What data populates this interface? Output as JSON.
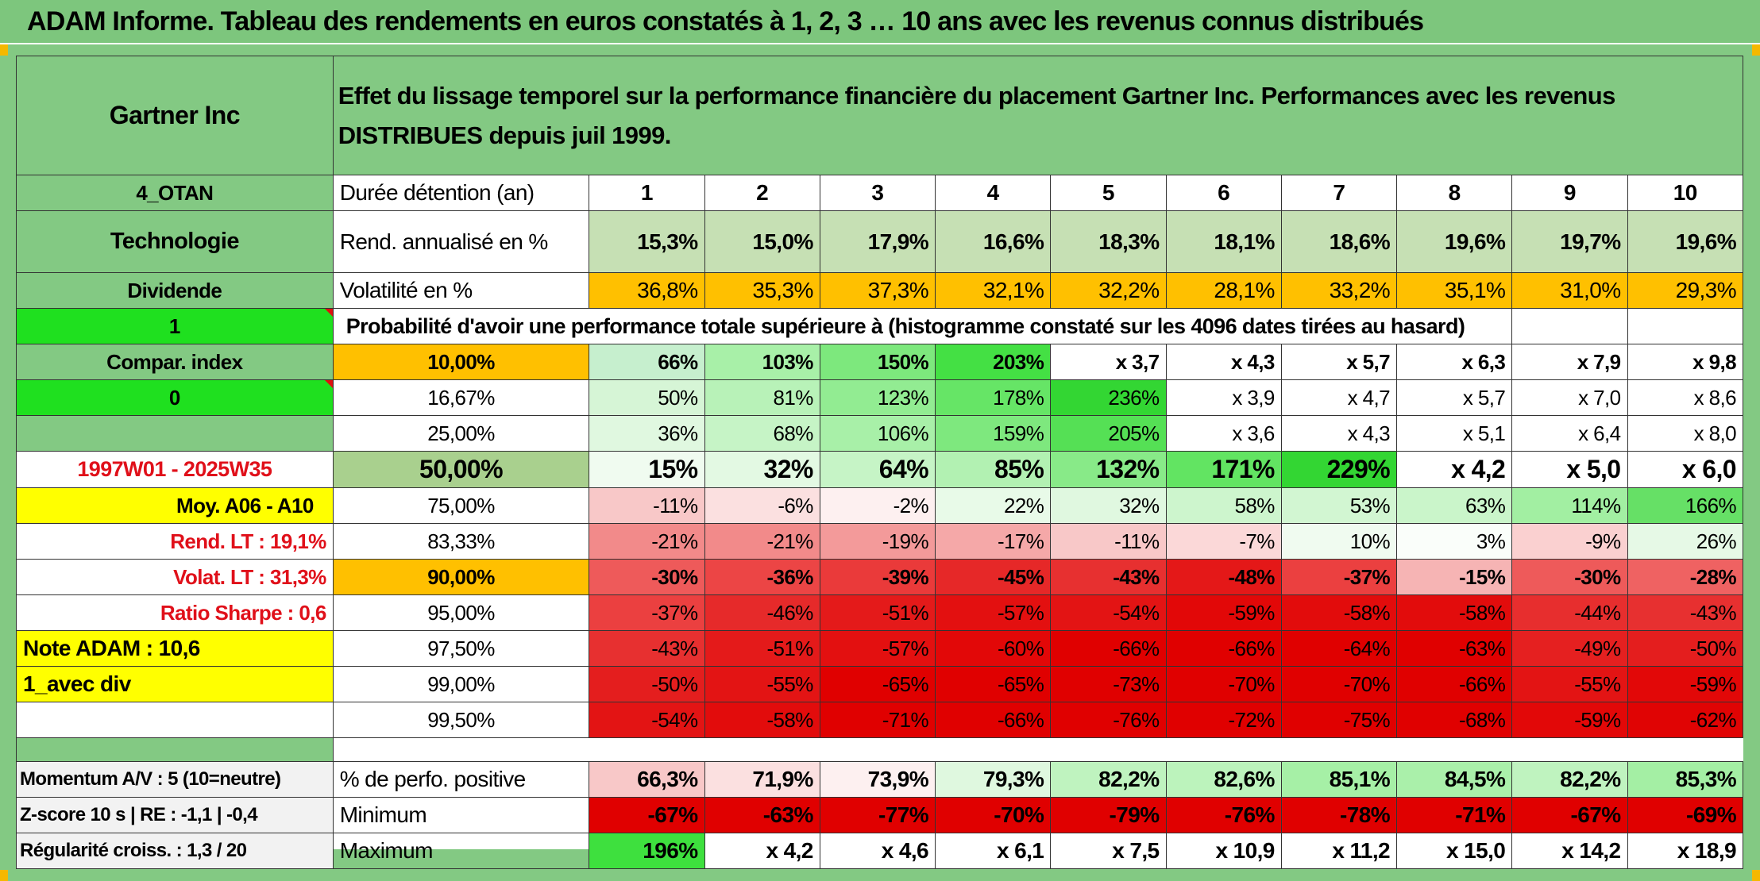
{
  "title": "ADAM Informe. Tableau des rendements en euros constatés à 1, 2, 3 … 10 ans avec les revenus connus distribués",
  "company": "Gartner Inc",
  "description": "Effet du lissage temporel sur la performance financière du placement Gartner Inc. Performances avec les revenus DISTRIBUES depuis juil 1999.",
  "left": {
    "group": "4_OTAN",
    "sector": "Technologie",
    "dividend": "Dividende",
    "value1": "1",
    "compar_index": "Compar. index",
    "value0": "0",
    "period": "1997W01 - 2025W35",
    "moy": "Moy. A06 - A10",
    "rend_lt": "Rend. LT :   19,1%",
    "volat_lt": "Volat. LT :   31,3%",
    "sharpe": "Ratio Sharpe :    0,6",
    "note": "Note ADAM : 10,6",
    "avec_div": "1_avec div",
    "momentum": "Momentum A/V : 5 (10=neutre)",
    "zscore": "Z-score 10 s | RE : -1,1 | -0,4",
    "regularite": "Régularité croiss. : 1,3 / 20"
  },
  "header": {
    "duration_label": "Durée détention (an)",
    "years": [
      "1",
      "2",
      "3",
      "4",
      "5",
      "6",
      "7",
      "8",
      "9",
      "10"
    ],
    "rend_label": "Rend. annualisé en %",
    "rend": [
      "15,3%",
      "15,0%",
      "17,9%",
      "16,6%",
      "18,3%",
      "18,1%",
      "18,6%",
      "19,6%",
      "19,7%",
      "19,6%"
    ],
    "vol_label": "Volatilité en %",
    "vol": [
      "36,8%",
      "35,3%",
      "37,3%",
      "32,1%",
      "32,2%",
      "28,1%",
      "33,2%",
      "35,1%",
      "31,0%",
      "29,3%"
    ],
    "prob_label": "Probabilité d'avoir une performance totale supérieure à (histogramme constaté sur les 4096 dates tirées au hasard)"
  },
  "rows": [
    {
      "pct": "10,00%",
      "vals": [
        "66%",
        "103%",
        "150%",
        "203%",
        "x 3,7",
        "x 4,3",
        "x 5,7",
        "x 6,3",
        "x 7,9",
        "x 9,8"
      ],
      "colors": [
        "#c6efce",
        "#a8f0a8",
        "#7de87d",
        "#44e044",
        "#ffffff",
        "#ffffff",
        "#ffffff",
        "#ffffff",
        "#ffffff",
        "#ffffff"
      ]
    },
    {
      "pct": "16,67%",
      "vals": [
        "50%",
        "81%",
        "123%",
        "178%",
        "236%",
        "x 3,9",
        "x 4,7",
        "x 5,7",
        "x 7,0",
        "x 8,6"
      ],
      "colors": [
        "#d6f5d6",
        "#b8f2b8",
        "#92ec92",
        "#66e566",
        "#33d633",
        "#ffffff",
        "#ffffff",
        "#ffffff",
        "#ffffff",
        "#ffffff"
      ]
    },
    {
      "pct": "25,00%",
      "vals": [
        "36%",
        "68%",
        "106%",
        "159%",
        "205%",
        "x 3,6",
        "x 4,3",
        "x 5,1",
        "x 6,4",
        "x 8,0"
      ],
      "colors": [
        "#e0f8e0",
        "#c6f4c6",
        "#a8f0a8",
        "#7ee87e",
        "#55e055",
        "#ffffff",
        "#ffffff",
        "#ffffff",
        "#ffffff",
        "#ffffff"
      ]
    },
    {
      "pct": "50,00%",
      "vals": [
        "15%",
        "32%",
        "64%",
        "85%",
        "132%",
        "171%",
        "229%",
        "x 4,2",
        "x 5,0",
        "x 6,0"
      ],
      "colors": [
        "#f0fbf0",
        "#e3f9e3",
        "#c6f4c6",
        "#b2f1b2",
        "#88ea88",
        "#62e462",
        "#33d633",
        "#ffffff",
        "#ffffff",
        "#ffffff"
      ]
    },
    {
      "pct": "75,00%",
      "vals": [
        "-11%",
        "-6%",
        "-2%",
        "22%",
        "32%",
        "58%",
        "53%",
        "63%",
        "114%",
        "166%"
      ],
      "colors": [
        "#f8c8c8",
        "#fbe0e0",
        "#fdf0f0",
        "#e8fae8",
        "#e0f8e0",
        "#cdf5cd",
        "#d2f6d2",
        "#caf5ca",
        "#a2ef a2",
        "#66e066"
      ]
    },
    {
      "pct": "83,33%",
      "vals": [
        "-21%",
        "-21%",
        "-19%",
        "-17%",
        "-11%",
        "-7%",
        "10%",
        "3%",
        "-9%",
        "26%"
      ],
      "colors": [
        "#f28a8a",
        "#f28a8a",
        "#f39a9a",
        "#f5a8a8",
        "#f8c8c8",
        "#fbd8d8",
        "#f0fbf0",
        "#fafefa",
        "#fad0d0",
        "#e6f9e6"
      ]
    },
    {
      "pct": "90,00%",
      "vals": [
        "-30%",
        "-36%",
        "-39%",
        "-45%",
        "-43%",
        "-48%",
        "-37%",
        "-15%",
        "-30%",
        "-28%"
      ],
      "colors": [
        "#ee5a5a",
        "#ec4545",
        "#ea3a3a",
        "#e62828",
        "#e73030",
        "#e41818",
        "#eb4040",
        "#f6b4b4",
        "#ee5a5a",
        "#ef6262"
      ]
    },
    {
      "pct": "95,00%",
      "vals": [
        "-37%",
        "-46%",
        "-51%",
        "-57%",
        "-54%",
        "-59%",
        "-58%",
        "-58%",
        "-44%",
        "-43%"
      ],
      "colors": [
        "#eb4040",
        "#e62a2a",
        "#e41a1a",
        "#e31010",
        "#e31414",
        "#e20808",
        "#e20c0c",
        "#e20c0c",
        "#e72e2e",
        "#e73030"
      ]
    },
    {
      "pct": "97,50%",
      "vals": [
        "-43%",
        "-51%",
        "-57%",
        "-60%",
        "-66%",
        "-66%",
        "-64%",
        "-63%",
        "-49%",
        "-50%"
      ],
      "colors": [
        "#e73030",
        "#e41a1a",
        "#e31010",
        "#e20808",
        "#e00000",
        "#e00000",
        "#e00000",
        "#e00000",
        "#e52020",
        "#e41e1e"
      ]
    },
    {
      "pct": "99,00%",
      "vals": [
        "-50%",
        "-55%",
        "-65%",
        "-65%",
        "-73%",
        "-70%",
        "-70%",
        "-66%",
        "-55%",
        "-59%"
      ],
      "colors": [
        "#e41e1e",
        "#e31414",
        "#e00000",
        "#e00000",
        "#e00000",
        "#e00000",
        "#e00000",
        "#e00000",
        "#e31414",
        "#e20808"
      ]
    },
    {
      "pct": "99,50%",
      "vals": [
        "-54%",
        "-58%",
        "-71%",
        "-66%",
        "-76%",
        "-72%",
        "-75%",
        "-68%",
        "-59%",
        "-62%"
      ],
      "colors": [
        "#e31414",
        "#e20c0c",
        "#e00000",
        "#e00000",
        "#e00000",
        "#e00000",
        "#e00000",
        "#e00000",
        "#e20808",
        "#e00404"
      ]
    }
  ],
  "footer": {
    "pos_label": "% de perfo. positive",
    "pos": [
      "66,3%",
      "71,9%",
      "73,9%",
      "79,3%",
      "82,2%",
      "82,6%",
      "85,1%",
      "84,5%",
      "82,2%",
      "85,3%"
    ],
    "pos_colors": [
      "#f8c8c8",
      "#fbe0e0",
      "#fdf0f0",
      "#dff8df",
      "#bff3bf",
      "#bcf3bc",
      "#a6f0a6",
      "#aaf0aa",
      "#bff3bf",
      "#a4efa4"
    ],
    "min_label": "Minimum",
    "min": [
      "-67%",
      "-63%",
      "-77%",
      "-70%",
      "-79%",
      "-76%",
      "-78%",
      "-71%",
      "-67%",
      "-69%"
    ],
    "max_label": "Maximum",
    "max": [
      "196%",
      "x 4,2",
      "x 4,6",
      "x 6,1",
      "x 7,5",
      "x 10,9",
      "x 11,2",
      "x 15,0",
      "x 14,2",
      "x 18,9"
    ]
  }
}
